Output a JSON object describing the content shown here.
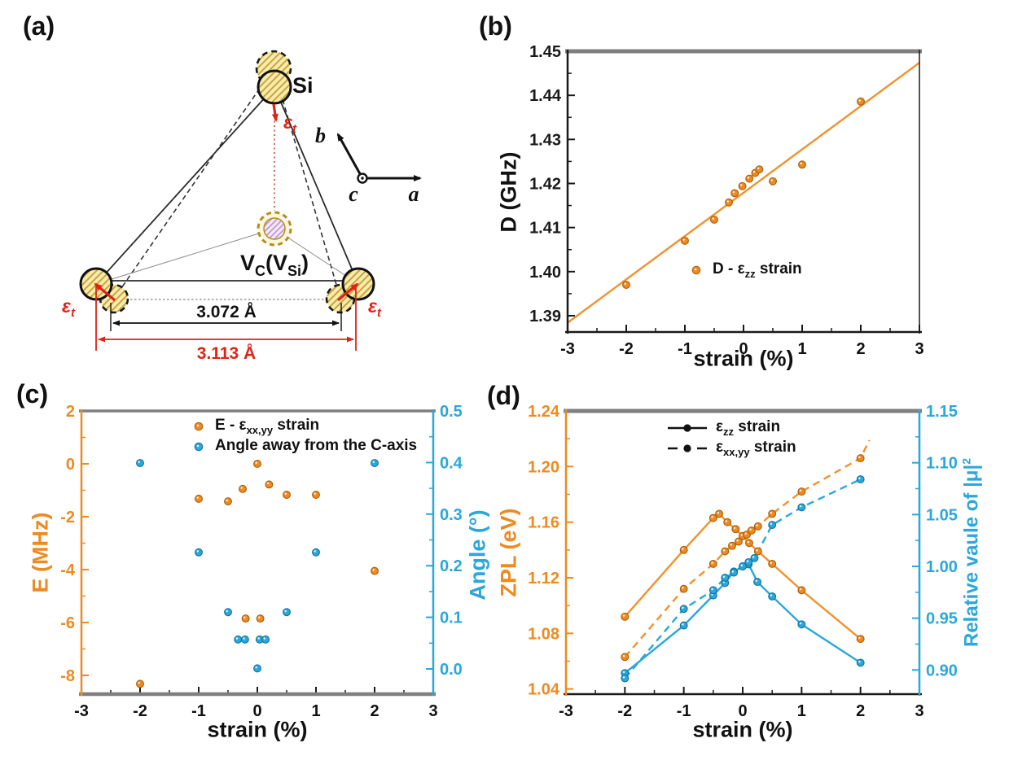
{
  "figure": {
    "panel_labels": {
      "a": "(a)",
      "b": "(b)",
      "c": "(c)",
      "d": "(d)"
    }
  },
  "colors": {
    "orange": "#ED8A21",
    "orange_edge": "#A85E06",
    "orange_line": "#F0922E",
    "blue": "#2BA7DB",
    "blue_edge": "#11719C",
    "black": "#1A1A1A",
    "gray_border": "#7F7F7F",
    "red": "#DD2415",
    "dark_yellow": "#B28E1F"
  },
  "diagram": {
    "si_label": "Si",
    "vacancy": {
      "p1": "V",
      "s1": "C",
      "p2": "(V",
      "s2": "Si",
      "p3": ")"
    },
    "strain": {
      "pre": "ε",
      "sub": "t"
    },
    "axis_a": "a",
    "axis_b": "b",
    "axis_c": "c",
    "dim_inner": "3.072 Å",
    "dim_outer": "3.113 Å"
  },
  "chart_data": [
    {
      "id": "b",
      "type": "scatter",
      "xlabel": "strain (%)",
      "ylabel": "D (GHz)",
      "xlim": [
        -3,
        3
      ],
      "ylim": [
        1.3863,
        1.45
      ],
      "xticks": [
        -3,
        -2,
        -1,
        0,
        1,
        2,
        3
      ],
      "xtick_labels": [
        "-3",
        "-2",
        "-1",
        "0",
        "1",
        "2",
        "3"
      ],
      "x_minor": 0.5,
      "yticks": [
        1.39,
        1.4,
        1.41,
        1.42,
        1.43,
        1.44,
        1.45
      ],
      "ytick_labels": [
        "1.39",
        "1.40",
        "1.41",
        "1.42",
        "1.43",
        "1.44",
        "1.45"
      ],
      "y_minor": 0.005,
      "legend": [
        {
          "pre": "D - ε",
          "sub": "zz",
          "post": " strain"
        }
      ],
      "series": [
        {
          "name": "fit-line",
          "color": "orange_line",
          "marker": "none",
          "line": "solid",
          "axis": "left",
          "x": [
            -3,
            3
          ],
          "y": [
            1.3884,
            1.4474
          ]
        },
        {
          "name": "D-vs-ezz-strain",
          "color": "orange",
          "marker": "circle",
          "line": "none",
          "axis": "left",
          "x": [
            -2,
            -1,
            -0.5,
            -0.25,
            -0.15,
            -0.02,
            0.1,
            0.2,
            0.27,
            0.5,
            1,
            2
          ],
          "y": [
            1.397,
            1.407,
            1.4118,
            1.4157,
            1.4178,
            1.4194,
            1.4211,
            1.4224,
            1.4232,
            1.4205,
            1.4243,
            1.4386
          ]
        }
      ]
    },
    {
      "id": "c",
      "type": "scatter",
      "xlabel": "strain (%)",
      "ylabel": "E (MHz)",
      "y2label": "Angle (°)",
      "xlim": [
        -3,
        3
      ],
      "ylim": [
        -8.71,
        2
      ],
      "y2lim": [
        -0.0489,
        0.5
      ],
      "xticks": [
        -3,
        -2,
        -1,
        0,
        1,
        2,
        3
      ],
      "xtick_labels": [
        "-3",
        "-2",
        "-1",
        "0",
        "1",
        "2",
        "3"
      ],
      "x_minor": 0.5,
      "yticks": [
        2,
        0,
        -2,
        -4,
        -6,
        -8
      ],
      "ytick_labels": [
        "2",
        "0",
        "-2",
        "-4",
        "-6",
        "-8"
      ],
      "y_minor": 1,
      "y2ticks": [
        0,
        0.1,
        0.2,
        0.3,
        0.4,
        0.5
      ],
      "y2tick_labels": [
        "0.0",
        "0.1",
        "0.2",
        "0.3",
        "0.4",
        "0.5"
      ],
      "y2_minor": 0.05,
      "legend": [
        {
          "pre": "E - ε",
          "sub": "xx,yy",
          "post": " strain"
        },
        {
          "pre": "Angle away from the C-axis",
          "sub": "",
          "post": ""
        }
      ],
      "series": [
        {
          "name": "E-vs-exxyy-strain",
          "color": "orange",
          "marker": "circle",
          "line": "none",
          "axis": "left",
          "x": [
            -2,
            -1,
            -0.5,
            -0.25,
            -0.2,
            0,
            0.05,
            0.2,
            0.5,
            1,
            2
          ],
          "y": [
            -8.32,
            -1.32,
            -1.42,
            -0.95,
            -5.85,
            0.0,
            -5.85,
            -0.78,
            -1.17,
            -1.17,
            -4.05
          ]
        },
        {
          "name": "angle-from-c-axis",
          "color": "blue",
          "marker": "circle",
          "line": "none",
          "axis": "right",
          "x": [
            -2,
            -1,
            -0.5,
            -0.33,
            -0.21,
            0,
            0.04,
            0.14,
            0.5,
            1,
            2
          ],
          "y": [
            0.399,
            0.226,
            0.11,
            0.057,
            0.057,
            0.001,
            0.057,
            0.057,
            0.11,
            0.226,
            0.399
          ]
        }
      ]
    },
    {
      "id": "d",
      "type": "line",
      "xlabel": "strain (%)",
      "ylabel": "ZPL (eV)",
      "y2label_pre": "Relative vaule of |μ|",
      "y2label_sup": "2",
      "xlim": [
        -3,
        3
      ],
      "ylim": [
        1.0363,
        1.24
      ],
      "y2lim": [
        0.8767,
        1.15
      ],
      "xticks": [
        -3,
        -2,
        -1,
        0,
        1,
        2,
        3
      ],
      "xtick_labels": [
        "-3",
        "-2",
        "-1",
        "0",
        "1",
        "2",
        "3"
      ],
      "x_minor": 0.5,
      "yticks": [
        1.04,
        1.08,
        1.12,
        1.16,
        1.2,
        1.24
      ],
      "ytick_labels": [
        "1.04",
        "1.08",
        "1.12",
        "1.16",
        "1.20",
        "1.24"
      ],
      "y_minor": 0.02,
      "y2ticks": [
        0.9,
        0.95,
        1.0,
        1.05,
        1.1,
        1.15
      ],
      "y2tick_labels": [
        "0.90",
        "0.95",
        "1.00",
        "1.05",
        "1.10",
        "1.15"
      ],
      "y2_minor": 0.025,
      "legend": [
        {
          "pre": "ε",
          "sub": "zz",
          "post": " strain"
        },
        {
          "pre": "ε",
          "sub": "xx,yy",
          "post": " strain"
        }
      ],
      "series": [
        {
          "name": "zpl-ezz",
          "color": "orange",
          "line_color": "orange_line",
          "marker": "circle",
          "line": "solid",
          "axis": "left",
          "x": [
            -2,
            -1,
            -0.5,
            -0.4,
            -0.26,
            -0.12,
            0,
            0.11,
            0.26,
            0.5,
            1,
            2
          ],
          "y": [
            1.092,
            1.14,
            1.163,
            1.166,
            1.16,
            1.155,
            1.15,
            1.145,
            1.139,
            1.13,
            1.111,
            1.076
          ]
        },
        {
          "name": "zpl-exxyy",
          "color": "orange",
          "line_color": "orange_line",
          "marker": "circle",
          "line": "dashed",
          "axis": "left",
          "x": [
            -2,
            -1,
            -0.5,
            -0.3,
            -0.18,
            -0.07,
            0.07,
            0.15,
            0.26,
            0.5,
            1,
            2
          ],
          "y": [
            1.063,
            1.112,
            1.13,
            1.139,
            1.143,
            1.146,
            1.151,
            1.154,
            1.157,
            1.166,
            1.182,
            1.206
          ],
          "line_x": [
            -2,
            -1,
            -0.5,
            -0.3,
            -0.18,
            -0.07,
            0.07,
            0.15,
            0.26,
            0.5,
            1,
            2,
            2.15
          ],
          "line_y": [
            1.063,
            1.112,
            1.13,
            1.139,
            1.143,
            1.146,
            1.151,
            1.154,
            1.157,
            1.166,
            1.182,
            1.206,
            1.219
          ]
        },
        {
          "name": "mu-ezz",
          "color": "blue",
          "marker": "circle",
          "line": "solid",
          "axis": "right",
          "x": [
            -2,
            -1,
            -0.5,
            -0.3,
            -0.15,
            0,
            0.1,
            0.25,
            0.5,
            1,
            2
          ],
          "y": [
            0.897,
            0.943,
            0.972,
            0.984,
            0.995,
            1.0,
            1.002,
            0.985,
            0.971,
            0.944,
            0.907
          ]
        },
        {
          "name": "mu-exxyy",
          "color": "blue",
          "marker": "circle",
          "line": "dashed",
          "axis": "right",
          "x": [
            -2,
            -1,
            -0.5,
            -0.3,
            -0.15,
            0,
            0.1,
            0.2,
            0.5,
            1,
            2
          ],
          "y": [
            0.892,
            0.959,
            0.977,
            0.989,
            0.994,
            1.0,
            1.004,
            1.008,
            1.04,
            1.057,
            1.084
          ]
        }
      ]
    }
  ]
}
